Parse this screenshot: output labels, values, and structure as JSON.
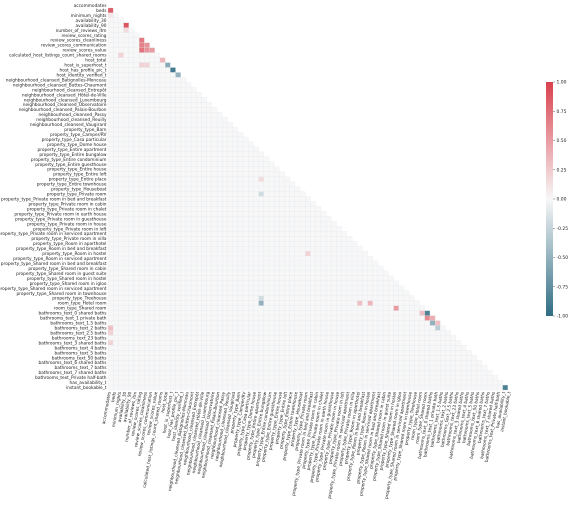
{
  "chart_data": {
    "type": "heatmap",
    "subtype": "lower-triangle correlation matrix",
    "grid": true,
    "colormap": {
      "negative": "#2f6d84",
      "zero": "#f7f7f7",
      "positive": "#d9414d"
    },
    "vmin": -1.0,
    "vmax": 1.0,
    "colorbar": {
      "position": "right",
      "ticks": [
        "1.00",
        "0.75",
        "0.50",
        "0.25",
        "0.00",
        "-0.25",
        "-0.50",
        "-0.75",
        "-1.00"
      ]
    },
    "labels": [
      "accommodates",
      "beds",
      "minimum_nights",
      "availability_30",
      "availability_90",
      "number_of_reviews_ltm",
      "review_scores_rating",
      "review_scores_cleanliness",
      "review_scores_communication",
      "review_scores_value",
      "calculated_host_listings_count_shared_rooms",
      "host_total",
      "host_is_superhost_t",
      "host_has_profile_pic_t",
      "host_identity_verified_t",
      "neighbourhood_cleansed_Batignolles-Monceau",
      "neighbourhood_cleansed_Buttes-Chaumont",
      "neighbourhood_cleansed_Entrepôt",
      "neighbourhood_cleansed_Hôtel-de-Ville",
      "neighbourhood_cleansed_Luxembourg",
      "neighbourhood_cleansed_Observatoire",
      "neighbourhood_cleansed_Palais-Bourbon",
      "neighbourhood_cleansed_Passy",
      "neighbourhood_cleansed_Reuilly",
      "neighbourhood_cleansed_Vaugirard",
      "property_type_Barn",
      "property_type_Camper/RV",
      "property_type_Casa particular",
      "property_type_Dome house",
      "property_type_Entire apartment",
      "property_type_Entire bungalow",
      "property_type_Entire condominium",
      "property_type_Entire guesthouse",
      "property_type_Entire house",
      "property_type_Entire loft",
      "property_type_Entire place",
      "property_type_Entire townhouse",
      "property_type_Houseboat",
      "property_type_Private room",
      "property_type_Private room in bed and breakfast",
      "property_type_Private room in cabin",
      "property_type_Private room in chalet",
      "property_type_Private room in earth house",
      "property_type_Private room in guesthouse",
      "property_type_Private room in house",
      "property_type_Private room in loft",
      "property_type_Private room in serviced apartment",
      "property_type_Private room in villa",
      "property_type_Room in aparthotel",
      "property_type_Room in bed and breakfast",
      "property_type_Room in hostel",
      "property_type_Room in serviced apartment",
      "property_type_Shared room in bed and breakfast",
      "property_type_Shared room in cabin",
      "property_type_Shared room in guest suite",
      "property_type_Shared room in hostel",
      "property_type_Shared room in igloo",
      "property_type_Shared room in serviced apartment",
      "property_type_Shared room in townhouse",
      "property_type_Treehouse",
      "room_type_Hotel room",
      "room_type_Shared room",
      "bathrooms_text_0 shared baths",
      "bathrooms_text_1 private bath",
      "bathrooms_text_1.5 baths",
      "bathrooms_text_2 baths",
      "bathrooms_text_2.5 baths",
      "bathrooms_text_23 baths",
      "bathrooms_text_3 shared baths",
      "bathrooms_text_4 baths",
      "bathrooms_text_5 baths",
      "bathrooms_text_50 baths",
      "bathrooms_text_6 shared baths",
      "bathrooms_text_7 baths",
      "bathrooms_text_7 shared baths",
      "bathrooms_text_Private half-bath",
      "has_availability_t",
      "instant_bookable_t"
    ],
    "notable_correlations": [
      {
        "row": "beds",
        "col": "accommodates",
        "value": 0.85
      },
      {
        "row": "minimum_nights",
        "col": "accommodates",
        "value": 0.1
      },
      {
        "row": "availability_90",
        "col": "availability_30",
        "value": 0.88
      },
      {
        "row": "number_of_reviews_ltm",
        "col": "availability_30",
        "value": 0.15
      },
      {
        "row": "review_scores_cleanliness",
        "col": "review_scores_rating",
        "value": 0.7
      },
      {
        "row": "review_scores_communication",
        "col": "review_scores_rating",
        "value": 0.65
      },
      {
        "row": "review_scores_communication",
        "col": "review_scores_cleanliness",
        "value": 0.55
      },
      {
        "row": "review_scores_value",
        "col": "review_scores_rating",
        "value": 0.72
      },
      {
        "row": "review_scores_value",
        "col": "review_scores_cleanliness",
        "value": 0.55
      },
      {
        "row": "review_scores_value",
        "col": "review_scores_communication",
        "value": 0.5
      },
      {
        "row": "calculated_host_listings_count_shared_rooms",
        "col": "minimum_nights",
        "value": 0.2
      },
      {
        "row": "host_total",
        "col": "calculated_host_listings_count_shared_rooms",
        "value": 0.35
      },
      {
        "row": "host_is_superhost_t",
        "col": "review_scores_rating",
        "value": 0.2
      },
      {
        "row": "host_is_superhost_t",
        "col": "review_scores_cleanliness",
        "value": 0.2
      },
      {
        "row": "host_is_superhost_t",
        "col": "host_total",
        "value": -0.55
      },
      {
        "row": "host_has_profile_pic_t",
        "col": "host_is_superhost_t",
        "value": -0.9
      },
      {
        "row": "host_identity_verified_t",
        "col": "host_has_profile_pic_t",
        "value": -0.5
      },
      {
        "row": "property_type_Entire place",
        "col": "property_type_Entire apartment",
        "value": 0.15
      },
      {
        "row": "property_type_Private room",
        "col": "property_type_Entire apartment",
        "value": -0.2
      },
      {
        "row": "property_type_Room in hostel",
        "col": "property_type_Private room",
        "value": 0.2
      },
      {
        "row": "property_type_Treehouse",
        "col": "property_type_Entire apartment",
        "value": -0.2
      },
      {
        "row": "room_type_Hotel room",
        "col": "property_type_Entire apartment",
        "value": -0.5
      },
      {
        "row": "room_type_Hotel room",
        "col": "property_type_Room in aparthotel",
        "value": 0.3
      },
      {
        "row": "room_type_Hotel room",
        "col": "property_type_Room in hostel",
        "value": 0.35
      },
      {
        "row": "room_type_Shared room",
        "col": "property_type_Shared room in hostel",
        "value": 0.5
      },
      {
        "row": "bathrooms_text_0 shared baths",
        "col": "room_type_Shared room",
        "value": -0.85
      },
      {
        "row": "bathrooms_text_0 shared baths",
        "col": "room_type_Hotel room",
        "value": 0.3
      },
      {
        "row": "bathrooms_text_1 private bath",
        "col": "room_type_Shared room",
        "value": 0.6
      },
      {
        "row": "bathrooms_text_1 private bath",
        "col": "bathrooms_text_0 shared baths",
        "value": 0.4
      },
      {
        "row": "bathrooms_text_1.5 baths",
        "col": "bathrooms_text_0 shared baths",
        "value": -0.5
      },
      {
        "row": "bathrooms_text_1.5 baths",
        "col": "bathrooms_text_1 private bath",
        "value": 0.3
      },
      {
        "row": "bathrooms_text_2 baths",
        "col": "accommodates",
        "value": 0.3
      },
      {
        "row": "bathrooms_text_2 baths",
        "col": "bathrooms_text_1 private bath",
        "value": -0.3
      },
      {
        "row": "bathrooms_text_2.5 baths",
        "col": "accommodates",
        "value": 0.2
      },
      {
        "row": "bathrooms_text_3 shared baths",
        "col": "accommodates",
        "value": 0.2
      },
      {
        "row": "instant_bookable_t",
        "col": "has_availability_t",
        "value": -0.85
      }
    ],
    "default_value": 0.0
  }
}
